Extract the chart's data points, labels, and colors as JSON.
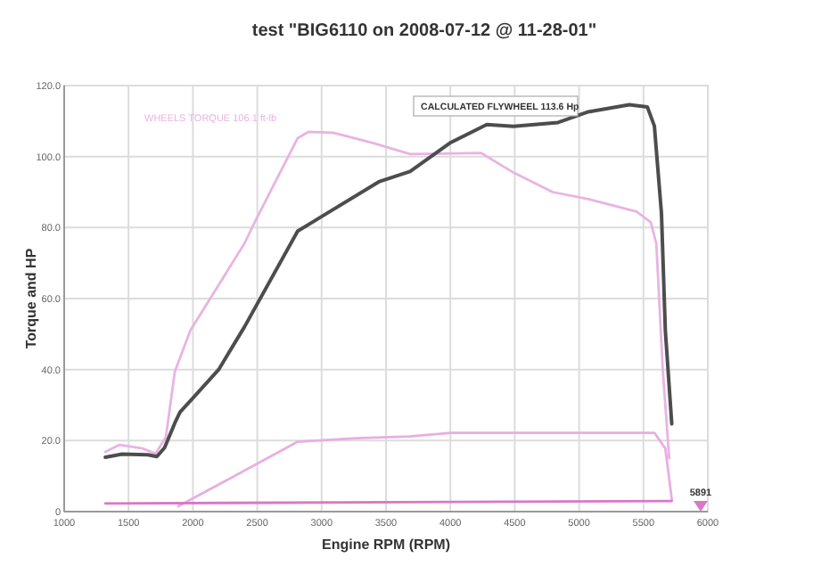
{
  "chart_data": {
    "type": "line",
    "title": "test \"BIG6110 on 2008-07-12 @ 11-28-01\"",
    "xlabel": "Engine RPM (RPM)",
    "ylabel": "Torque and HP",
    "xlim": [
      1000,
      6000
    ],
    "xticks": [
      1000,
      1500,
      2000,
      2500,
      3000,
      3500,
      4000,
      4500,
      5000,
      5500,
      6000
    ],
    "ylim": [
      0,
      120
    ],
    "yticks": [
      0,
      {
        "value": 20,
        "label": "20.0"
      },
      {
        "value": 40,
        "label": "40.0"
      },
      {
        "value": 60,
        "label": "60.0"
      },
      {
        "value": 80,
        "label": "80.0"
      },
      {
        "value": 100,
        "label": "100.0"
      },
      {
        "value": 120,
        "label": "120.0"
      }
    ],
    "grid": true,
    "marker": "none",
    "line_style": "solid",
    "annotations": [
      "CALCULATED FLYWHEEL 113.6 Hp",
      "5891"
    ],
    "series": [
      {
        "name": "WHEELS TORQUE 106.1 ft-lb",
        "color": "#e8b4e2",
        "x": [
          1320,
          1430,
          1610,
          1710,
          1790,
          1860,
          1980,
          2400,
          2480,
          2814,
          2900,
          3090,
          3410,
          3687,
          4240,
          4476,
          4795,
          5072,
          5446,
          5557,
          5600,
          5650,
          5700
        ],
        "values": [
          16.8,
          18.8,
          17.8,
          16.3,
          21,
          39.5,
          51,
          75.5,
          81.5,
          105.2,
          107,
          106.7,
          103.7,
          100.7,
          101,
          95.8,
          90,
          88,
          84.5,
          81.5,
          75.5,
          40,
          15
        ]
      },
      {
        "color": "#e8aee0",
        "x": [
          1886,
          2343,
          2814,
          3271,
          3687,
          4005,
          5585,
          5670,
          5720
        ],
        "values": [
          1.5,
          10.4,
          19.7,
          20.7,
          21.2,
          22.2,
          22.2,
          17.8,
          3.5
        ]
      },
      {
        "color": "#d878c8",
        "x": [
          1320,
          5720
        ],
        "values": [
          2.3,
          3
        ]
      },
      {
        "color": "#4d4d4d",
        "x": [
          1320,
          1450,
          1650,
          1720,
          1780,
          1860,
          1900,
          2000,
          2200,
          2400,
          2814,
          2995,
          3450,
          3687,
          4005,
          4283,
          4490,
          4837,
          5072,
          5390,
          5530,
          5585,
          5640,
          5670,
          5720
        ],
        "values": [
          15.3,
          16.2,
          16,
          15.5,
          18,
          25,
          28,
          32,
          40,
          52,
          79,
          83,
          93,
          95.8,
          104,
          109,
          108.5,
          109.6,
          112.6,
          114.6,
          114,
          108.6,
          84,
          51,
          24.7
        ]
      }
    ]
  }
}
